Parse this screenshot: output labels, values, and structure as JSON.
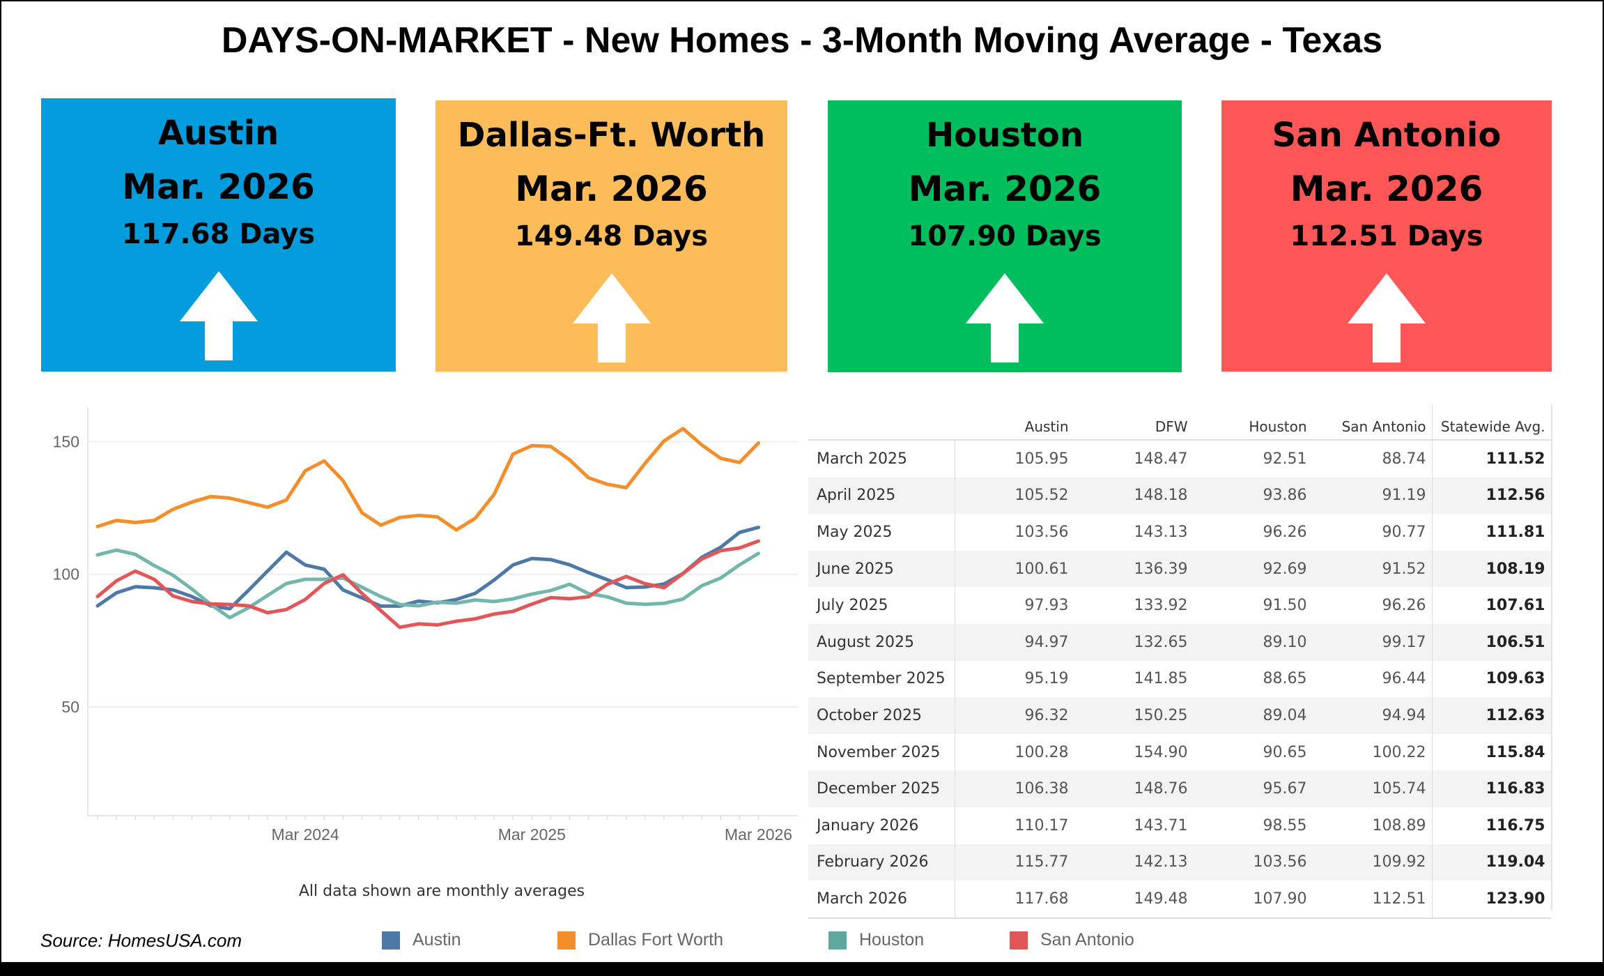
{
  "title": "DAYS-ON-MARKET - New Homes - 3-Month Moving Average - Texas",
  "cards": [
    {
      "name": "Austin",
      "date": "Mar. 2026",
      "days": "117.68 Days",
      "color": "#029CDD",
      "trend": "up-arrow-icon"
    },
    {
      "name": "Dallas-Ft. Worth",
      "date": "Mar. 2026",
      "days": "149.48 Days",
      "color": "#FDBC5A",
      "trend": "up-arrow-icon"
    },
    {
      "name": "Houston",
      "date": "Mar. 2026",
      "days": "107.90 Days",
      "color": "#00BE5E",
      "trend": "up-arrow-icon"
    },
    {
      "name": "San Antonio",
      "date": "Mar. 2026",
      "days": "112.51 Days",
      "color": "#FF5757",
      "trend": "up-arrow-icon"
    }
  ],
  "note": "All data shown are monthly averages",
  "source": "Source: HomesUSA.com",
  "legend": [
    {
      "label": "Austin",
      "color": "#4E79A7"
    },
    {
      "label": "Dallas Fort Worth",
      "color": "#F28E2B"
    },
    {
      "label": "Houston",
      "color": "#5FA89F"
    },
    {
      "label": "San Antonio",
      "color": "#E15759"
    }
  ],
  "chart_data": {
    "type": "line",
    "x": [
      "2023-04",
      "2023-05",
      "2023-06",
      "2023-07",
      "2023-08",
      "2023-09",
      "2023-10",
      "2023-11",
      "2023-12",
      "2024-01",
      "2024-02",
      "2024-03",
      "2024-04",
      "2024-05",
      "2024-06",
      "2024-07",
      "2024-08",
      "2024-09",
      "2024-10",
      "2024-11",
      "2024-12",
      "2025-01",
      "2025-02",
      "2025-03",
      "2025-04",
      "2025-05",
      "2025-06",
      "2025-07",
      "2025-08",
      "2025-09",
      "2025-10",
      "2025-11",
      "2025-12",
      "2026-01",
      "2026-02",
      "2026-03"
    ],
    "xticks": [
      {
        "x": "2024-03",
        "label": "Mar 2024"
      },
      {
        "x": "2025-03",
        "label": "Mar 2025"
      },
      {
        "x": "2026-03",
        "label": "Mar 2026"
      }
    ],
    "yticks": [
      50,
      100,
      150
    ],
    "ylim": [
      9,
      163
    ],
    "grid": true,
    "legend_position": "bottom",
    "series": [
      {
        "name": "Austin",
        "color": "#4E79A7",
        "values": [
          88.1,
          93.0,
          95.3,
          94.9,
          94.1,
          91.6,
          88.1,
          87.0,
          94.0,
          101.2,
          108.3,
          103.5,
          101.9,
          94.1,
          91.1,
          88.0,
          88.0,
          89.9,
          89.2,
          90.5,
          92.8,
          97.8,
          103.5,
          105.95,
          105.52,
          103.56,
          100.61,
          97.93,
          94.97,
          95.19,
          96.32,
          100.28,
          106.38,
          110.17,
          115.77,
          117.68
        ]
      },
      {
        "name": "Dallas Fort Worth",
        "color": "#F28E2B",
        "values": [
          118.0,
          120.3,
          119.5,
          120.3,
          124.5,
          127.2,
          129.3,
          128.7,
          127.0,
          125.3,
          128.0,
          139.0,
          142.7,
          135.3,
          123.2,
          118.5,
          121.4,
          122.2,
          121.6,
          116.7,
          121.1,
          130.1,
          145.3,
          148.47,
          148.18,
          143.13,
          136.39,
          133.92,
          132.65,
          141.85,
          150.25,
          154.9,
          148.76,
          143.71,
          142.13,
          149.48
        ]
      },
      {
        "name": "Houston",
        "color": "#72B6AC",
        "values": [
          107.3,
          109.1,
          107.5,
          103.3,
          99.6,
          94.4,
          88.6,
          83.6,
          87.4,
          92.0,
          96.5,
          98.1,
          98.1,
          98.6,
          95.1,
          91.6,
          88.6,
          88.1,
          89.5,
          89.1,
          90.3,
          89.7,
          90.7,
          92.51,
          93.86,
          96.26,
          92.69,
          91.5,
          89.1,
          88.65,
          89.04,
          90.65,
          95.67,
          98.55,
          103.56,
          107.9
        ]
      },
      {
        "name": "San Antonio",
        "color": "#E15759",
        "values": [
          91.6,
          97.5,
          101.2,
          98.1,
          91.8,
          89.7,
          88.8,
          88.6,
          88.1,
          85.5,
          86.7,
          90.5,
          96.5,
          99.8,
          92.8,
          86.3,
          80.0,
          81.3,
          80.9,
          82.3,
          83.2,
          85.0,
          86.0,
          88.74,
          91.19,
          90.77,
          91.52,
          96.26,
          99.17,
          96.44,
          94.94,
          100.22,
          105.74,
          108.89,
          109.92,
          112.51
        ]
      }
    ]
  },
  "table": {
    "headers": [
      "",
      "Austin",
      "DFW",
      "Houston",
      "San Antonio",
      "Statewide Avg."
    ],
    "rows": [
      [
        "March 2025",
        "105.95",
        "148.47",
        "92.51",
        "88.74",
        "111.52"
      ],
      [
        "April 2025",
        "105.52",
        "148.18",
        "93.86",
        "91.19",
        "112.56"
      ],
      [
        "May 2025",
        "103.56",
        "143.13",
        "96.26",
        "90.77",
        "111.81"
      ],
      [
        "June 2025",
        "100.61",
        "136.39",
        "92.69",
        "91.52",
        "108.19"
      ],
      [
        "July 2025",
        "97.93",
        "133.92",
        "91.50",
        "96.26",
        "107.61"
      ],
      [
        "August 2025",
        "94.97",
        "132.65",
        "89.10",
        "99.17",
        "106.51"
      ],
      [
        "September 2025",
        "95.19",
        "141.85",
        "88.65",
        "96.44",
        "109.63"
      ],
      [
        "October 2025",
        "96.32",
        "150.25",
        "89.04",
        "94.94",
        "112.63"
      ],
      [
        "November 2025",
        "100.28",
        "154.90",
        "90.65",
        "100.22",
        "115.84"
      ],
      [
        "December 2025",
        "106.38",
        "148.76",
        "95.67",
        "105.74",
        "116.83"
      ],
      [
        "January 2026",
        "110.17",
        "143.71",
        "98.55",
        "108.89",
        "116.75"
      ],
      [
        "February 2026",
        "115.77",
        "142.13",
        "103.56",
        "109.92",
        "119.04"
      ],
      [
        "March 2026",
        "117.68",
        "149.48",
        "107.90",
        "112.51",
        "123.90"
      ]
    ]
  }
}
